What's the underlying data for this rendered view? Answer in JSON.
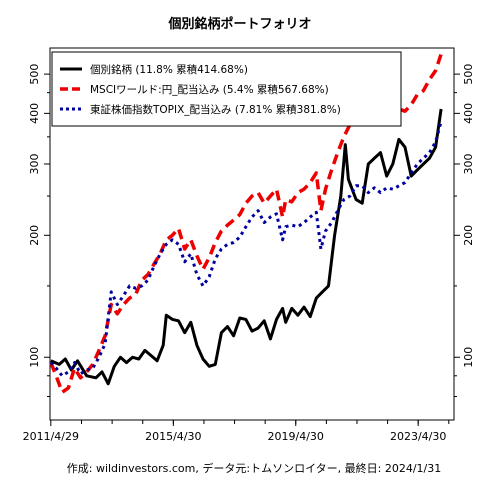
{
  "chart_data": {
    "type": "line",
    "title": "個別銘柄ポートフォリオ",
    "caption": "作成: wildinvestors.com, データ元:トムソンロイター, 最終日: 2024/1/31",
    "xlabel": "",
    "ylabel": "",
    "x_ticks": [
      "2011/4/29",
      "2015/4/30",
      "2019/4/30",
      "2023/4/30"
    ],
    "y_ticks": [
      "100",
      "200",
      "300",
      "400",
      "500"
    ],
    "y_tick_values": [
      100,
      200,
      300,
      400,
      500
    ],
    "log_scale_y": true,
    "xlim": [
      2011.3,
      2024.5
    ],
    "ylim": [
      70,
      580
    ],
    "legend_position": "top-left",
    "grid": false,
    "series": [
      {
        "name": "個別銘柄 (11.8% 累積414.68%)",
        "color": "#000000",
        "style": "solid",
        "x": [
          2011.33,
          2011.6,
          2011.8,
          2012.0,
          2012.2,
          2012.5,
          2012.8,
          2013.0,
          2013.2,
          2013.4,
          2013.6,
          2013.8,
          2014.0,
          2014.2,
          2014.4,
          2014.6,
          2014.8,
          2015.0,
          2015.1,
          2015.3,
          2015.5,
          2015.7,
          2015.9,
          2016.1,
          2016.3,
          2016.5,
          2016.7,
          2016.9,
          2017.1,
          2017.3,
          2017.5,
          2017.7,
          2017.9,
          2018.1,
          2018.3,
          2018.5,
          2018.7,
          2018.9,
          2019.0,
          2019.2,
          2019.4,
          2019.6,
          2019.8,
          2020.0,
          2020.2,
          2020.4,
          2020.6,
          2020.8,
          2020.95,
          2021.05,
          2021.3,
          2021.5,
          2021.7,
          2021.9,
          2022.1,
          2022.3,
          2022.5,
          2022.7,
          2022.9,
          2023.1,
          2023.3,
          2023.5,
          2023.7,
          2023.9,
          2024.08
        ],
        "values": [
          98,
          96,
          99,
          93,
          98,
          90,
          89,
          92,
          86,
          95,
          100,
          97,
          100,
          99,
          104,
          101,
          98,
          107,
          127,
          124,
          123,
          115,
          122,
          107,
          99,
          95,
          96,
          115,
          119,
          113,
          125,
          124,
          116,
          118,
          123,
          111,
          124,
          132,
          122,
          132,
          127,
          133,
          126,
          140,
          145,
          150,
          200,
          250,
          335,
          275,
          245,
          240,
          300,
          310,
          320,
          280,
          300,
          345,
          330,
          280,
          290,
          300,
          310,
          330,
          410
        ]
      },
      {
        "name": "MSCIワールド:円_配当込み (5.4% 累積567.68%)",
        "color": "#ee0000",
        "style": "dashed",
        "x": [
          2011.33,
          2011.5,
          2011.7,
          2011.9,
          2012.1,
          2012.3,
          2012.5,
          2012.7,
          2012.9,
          2013.1,
          2013.3,
          2013.5,
          2013.7,
          2013.9,
          2014.1,
          2014.3,
          2014.5,
          2014.7,
          2014.9,
          2015.1,
          2015.3,
          2015.5,
          2015.7,
          2015.9,
          2016.1,
          2016.3,
          2016.5,
          2016.7,
          2016.9,
          2017.1,
          2017.3,
          2017.5,
          2017.7,
          2017.9,
          2018.1,
          2018.3,
          2018.5,
          2018.7,
          2018.9,
          2019.0,
          2019.2,
          2019.4,
          2019.6,
          2019.8,
          2020.0,
          2020.15,
          2020.3,
          2020.5,
          2020.7,
          2020.9,
          2021.1,
          2021.3,
          2021.5,
          2021.7,
          2021.9,
          2022.1,
          2022.3,
          2022.5,
          2022.7,
          2022.9,
          2023.1,
          2023.3,
          2023.5,
          2023.7,
          2023.9,
          2024.08
        ],
        "values": [
          97,
          90,
          82,
          84,
          94,
          89,
          92,
          96,
          104,
          113,
          135,
          128,
          135,
          140,
          143,
          155,
          160,
          170,
          180,
          195,
          200,
          208,
          185,
          195,
          178,
          165,
          176,
          192,
          205,
          212,
          218,
          225,
          240,
          250,
          255,
          240,
          250,
          260,
          222,
          245,
          242,
          255,
          260,
          270,
          285,
          230,
          260,
          290,
          320,
          350,
          375,
          395,
          410,
          400,
          420,
          410,
          415,
          400,
          410,
          405,
          420,
          445,
          455,
          485,
          510,
          560
        ]
      },
      {
        "name": "東証株価指数TOPIX_配当込み (7.81% 累積381.8%)",
        "color": "#0000a0",
        "style": "dotted",
        "x": [
          2011.33,
          2011.5,
          2011.7,
          2011.9,
          2012.1,
          2012.3,
          2012.5,
          2012.7,
          2012.9,
          2013.1,
          2013.3,
          2013.5,
          2013.7,
          2013.9,
          2014.1,
          2014.3,
          2014.5,
          2014.7,
          2014.9,
          2015.1,
          2015.3,
          2015.5,
          2015.7,
          2015.9,
          2016.1,
          2016.3,
          2016.5,
          2016.7,
          2016.9,
          2017.1,
          2017.3,
          2017.5,
          2017.7,
          2017.9,
          2018.1,
          2018.3,
          2018.5,
          2018.7,
          2018.9,
          2019.0,
          2019.2,
          2019.4,
          2019.6,
          2019.8,
          2020.0,
          2020.15,
          2020.3,
          2020.5,
          2020.7,
          2020.9,
          2021.1,
          2021.3,
          2021.5,
          2021.7,
          2021.9,
          2022.1,
          2022.3,
          2022.5,
          2022.7,
          2022.9,
          2023.1,
          2023.3,
          2023.5,
          2023.7,
          2023.9,
          2024.08
        ],
        "values": [
          97,
          94,
          90,
          92,
          97,
          91,
          93,
          94,
          100,
          108,
          145,
          135,
          142,
          150,
          148,
          150,
          155,
          168,
          180,
          190,
          195,
          190,
          172,
          180,
          160,
          150,
          158,
          175,
          185,
          190,
          192,
          198,
          210,
          222,
          230,
          215,
          222,
          226,
          195,
          210,
          212,
          210,
          215,
          222,
          228,
          185,
          205,
          215,
          230,
          245,
          250,
          265,
          265,
          255,
          262,
          255,
          262,
          260,
          265,
          270,
          285,
          300,
          310,
          320,
          340,
          382
        ]
      }
    ]
  }
}
